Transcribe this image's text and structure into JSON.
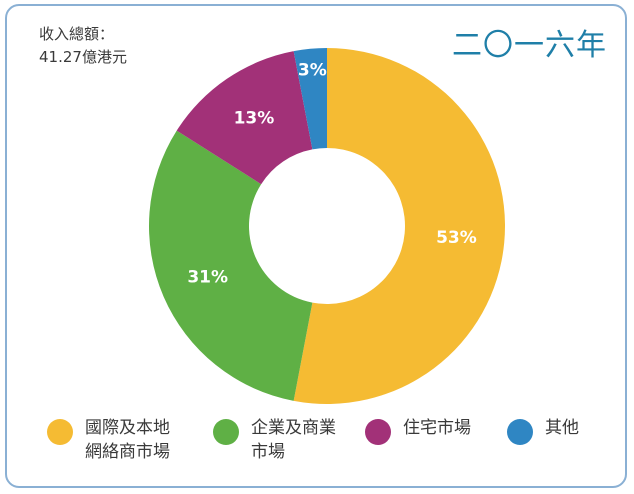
{
  "header": {
    "total_label": "收入總額：",
    "total_value": "41.27億港元",
    "year_title": "二〇一六年"
  },
  "chart_data": {
    "type": "pie",
    "style": "donut",
    "start_angle_deg": 0,
    "slices": [
      {
        "label": "國際及本地網絡商市場",
        "value": 53,
        "value_label": "53%",
        "color": "#f5bb33"
      },
      {
        "label": "企業及商業市場",
        "value": 31,
        "value_label": "31%",
        "color": "#5fb045"
      },
      {
        "label": "住宅市場",
        "value": 13,
        "value_label": "13%",
        "color": "#a23178"
      },
      {
        "label": "其他",
        "value": 3,
        "value_label": "3%",
        "color": "#2f86c3"
      }
    ],
    "legend_placement": "bottom"
  },
  "legend": {
    "items": [
      {
        "label": "國際及本地\n網絡商市場",
        "color": "#f5bb33"
      },
      {
        "label": "企業及商業\n市場",
        "color": "#5fb045"
      },
      {
        "label": "住宅市場",
        "color": "#a23178"
      },
      {
        "label": "其他",
        "color": "#2f86c3"
      }
    ]
  }
}
